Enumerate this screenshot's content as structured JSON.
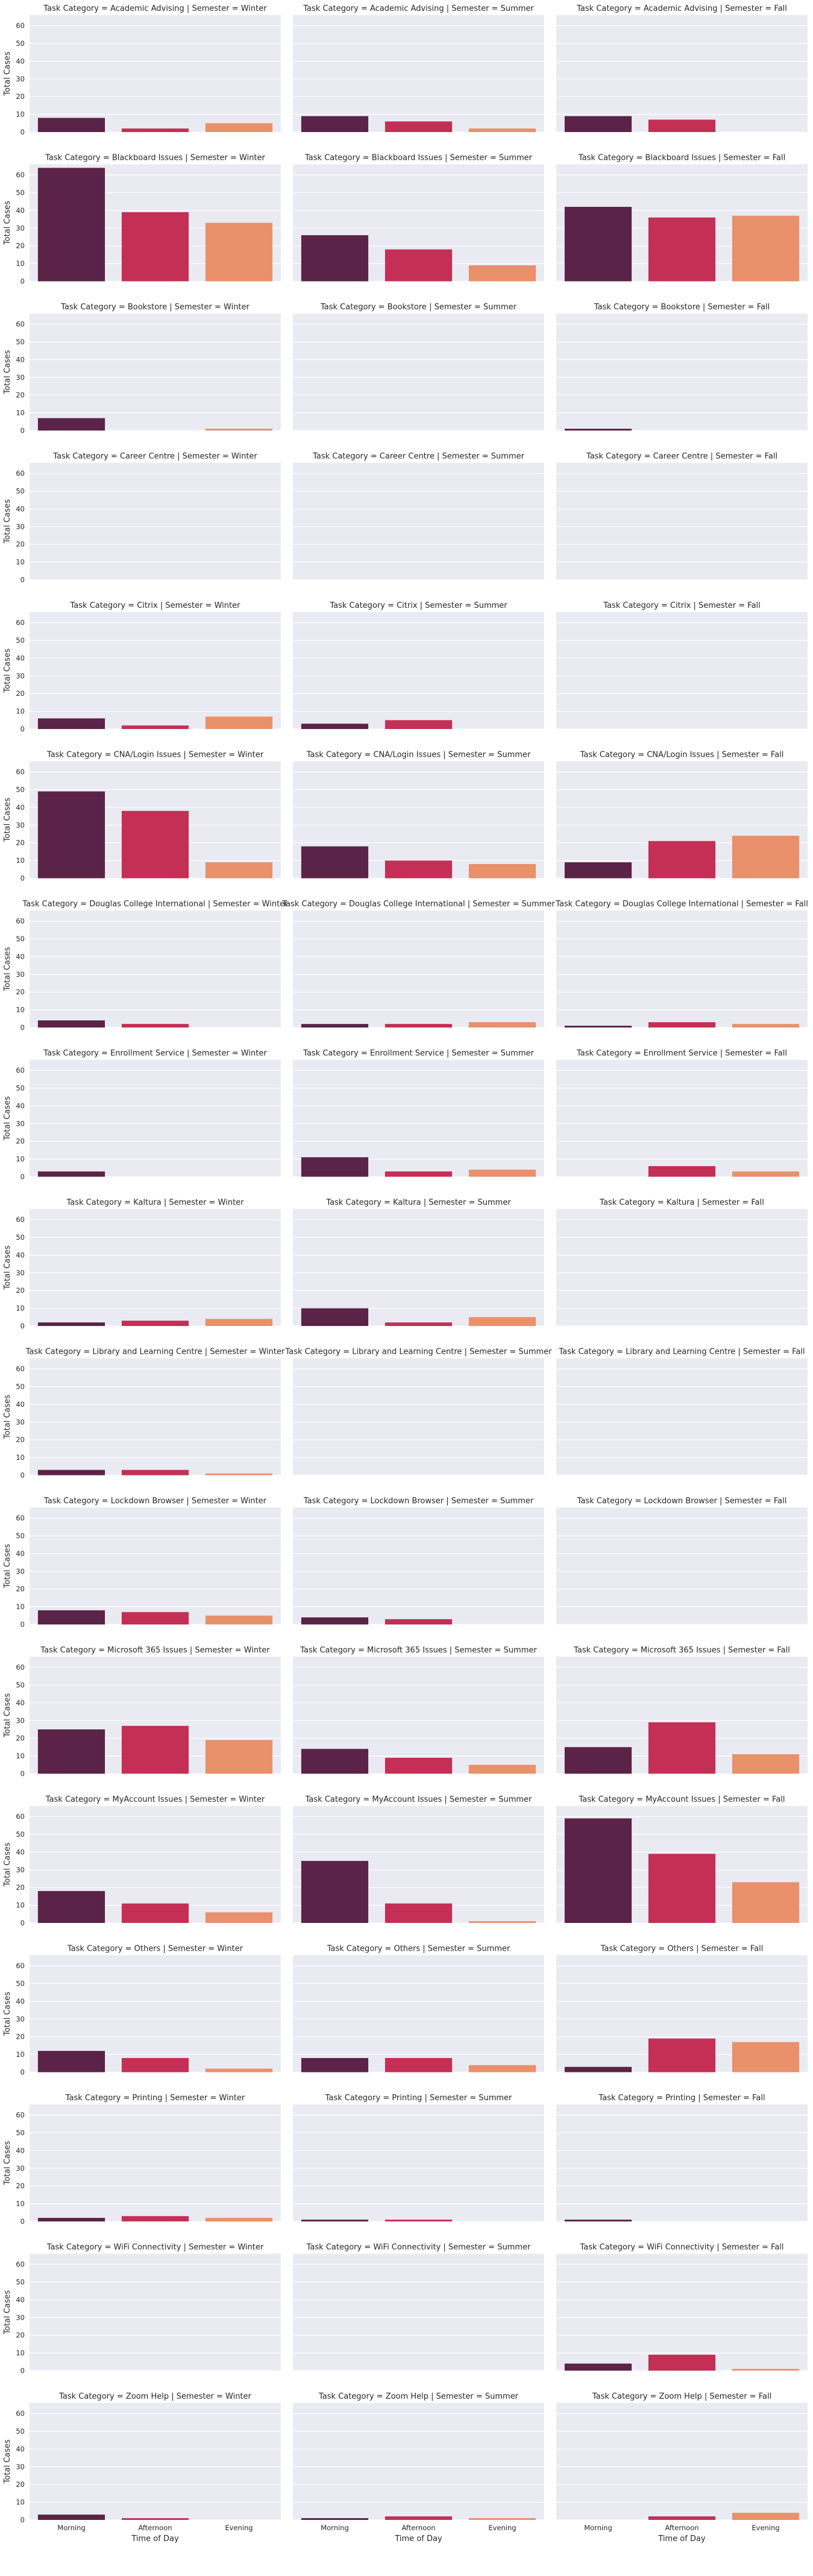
{
  "chart_data": {
    "type": "bar",
    "row_variable": "Task Category",
    "col_variable": "Semester",
    "semesters": [
      "Winter",
      "Summer",
      "Fall"
    ],
    "categories": [
      "Morning",
      "Afternoon",
      "Evening"
    ],
    "xlabel": "Time of Day",
    "ylabel": "Total Cases",
    "ylim": [
      0,
      66
    ],
    "yticks": [
      0,
      10,
      20,
      30,
      40,
      50,
      60
    ],
    "grid": true,
    "colors": [
      "#5a2347",
      "#c42f56",
      "#e8916b"
    ],
    "facets": [
      {
        "name": "Academic Advising",
        "values": {
          "Winter": [
            8,
            2,
            5
          ],
          "Summer": [
            9,
            6,
            2
          ],
          "Fall": [
            9,
            7,
            0
          ]
        }
      },
      {
        "name": "Blackboard Issues",
        "values": {
          "Winter": [
            64,
            39,
            33
          ],
          "Summer": [
            26,
            18,
            9
          ],
          "Fall": [
            42,
            36,
            37
          ]
        }
      },
      {
        "name": "Bookstore",
        "values": {
          "Winter": [
            7,
            0,
            1
          ],
          "Summer": [
            0,
            0,
            0
          ],
          "Fall": [
            1,
            0,
            0
          ]
        }
      },
      {
        "name": "Career Centre",
        "values": {
          "Winter": [
            0,
            0,
            0
          ],
          "Summer": [
            0,
            0,
            0
          ],
          "Fall": [
            0,
            0,
            0
          ]
        }
      },
      {
        "name": "Citrix",
        "values": {
          "Winter": [
            6,
            2,
            7
          ],
          "Summer": [
            3,
            5,
            0
          ],
          "Fall": [
            0,
            0,
            0
          ]
        }
      },
      {
        "name": "CNA/Login Issues",
        "values": {
          "Winter": [
            49,
            38,
            9
          ],
          "Summer": [
            18,
            10,
            8
          ],
          "Fall": [
            9,
            21,
            24
          ]
        }
      },
      {
        "name": "Douglas College International",
        "values": {
          "Winter": [
            4,
            2,
            0
          ],
          "Summer": [
            2,
            2,
            3
          ],
          "Fall": [
            1,
            3,
            2
          ]
        }
      },
      {
        "name": "Enrollment Service",
        "values": {
          "Winter": [
            3,
            0,
            0
          ],
          "Summer": [
            11,
            3,
            4
          ],
          "Fall": [
            0,
            6,
            3
          ]
        }
      },
      {
        "name": "Kaltura",
        "values": {
          "Winter": [
            2,
            3,
            4
          ],
          "Summer": [
            10,
            2,
            5
          ],
          "Fall": [
            0,
            0,
            0
          ]
        }
      },
      {
        "name": "Library and Learning Centre",
        "values": {
          "Winter": [
            3,
            3,
            1
          ],
          "Summer": [
            0,
            0,
            0
          ],
          "Fall": [
            0,
            0,
            0
          ]
        }
      },
      {
        "name": "Lockdown Browser",
        "values": {
          "Winter": [
            8,
            7,
            5
          ],
          "Summer": [
            4,
            3,
            0
          ],
          "Fall": [
            0,
            0,
            0
          ]
        }
      },
      {
        "name": "Microsoft 365 Issues",
        "values": {
          "Winter": [
            25,
            27,
            19
          ],
          "Summer": [
            14,
            9,
            5
          ],
          "Fall": [
            15,
            29,
            11
          ]
        }
      },
      {
        "name": "MyAccount Issues",
        "values": {
          "Winter": [
            18,
            11,
            6
          ],
          "Summer": [
            35,
            11,
            1
          ],
          "Fall": [
            59,
            39,
            23
          ]
        }
      },
      {
        "name": "Others",
        "values": {
          "Winter": [
            12,
            8,
            2
          ],
          "Summer": [
            8,
            8,
            4
          ],
          "Fall": [
            3,
            19,
            17
          ]
        }
      },
      {
        "name": "Printing",
        "values": {
          "Winter": [
            2,
            3,
            2
          ],
          "Summer": [
            1,
            1,
            0
          ],
          "Fall": [
            1,
            0,
            0
          ]
        }
      },
      {
        "name": "WiFi Connectivity",
        "values": {
          "Winter": [
            0,
            0,
            0
          ],
          "Summer": [
            0,
            0,
            0
          ],
          "Fall": [
            4,
            9,
            1
          ]
        }
      },
      {
        "name": "Zoom Help",
        "values": {
          "Winter": [
            3,
            1,
            0
          ],
          "Summer": [
            1,
            2,
            1
          ],
          "Fall": [
            0,
            2,
            4
          ]
        }
      }
    ]
  }
}
